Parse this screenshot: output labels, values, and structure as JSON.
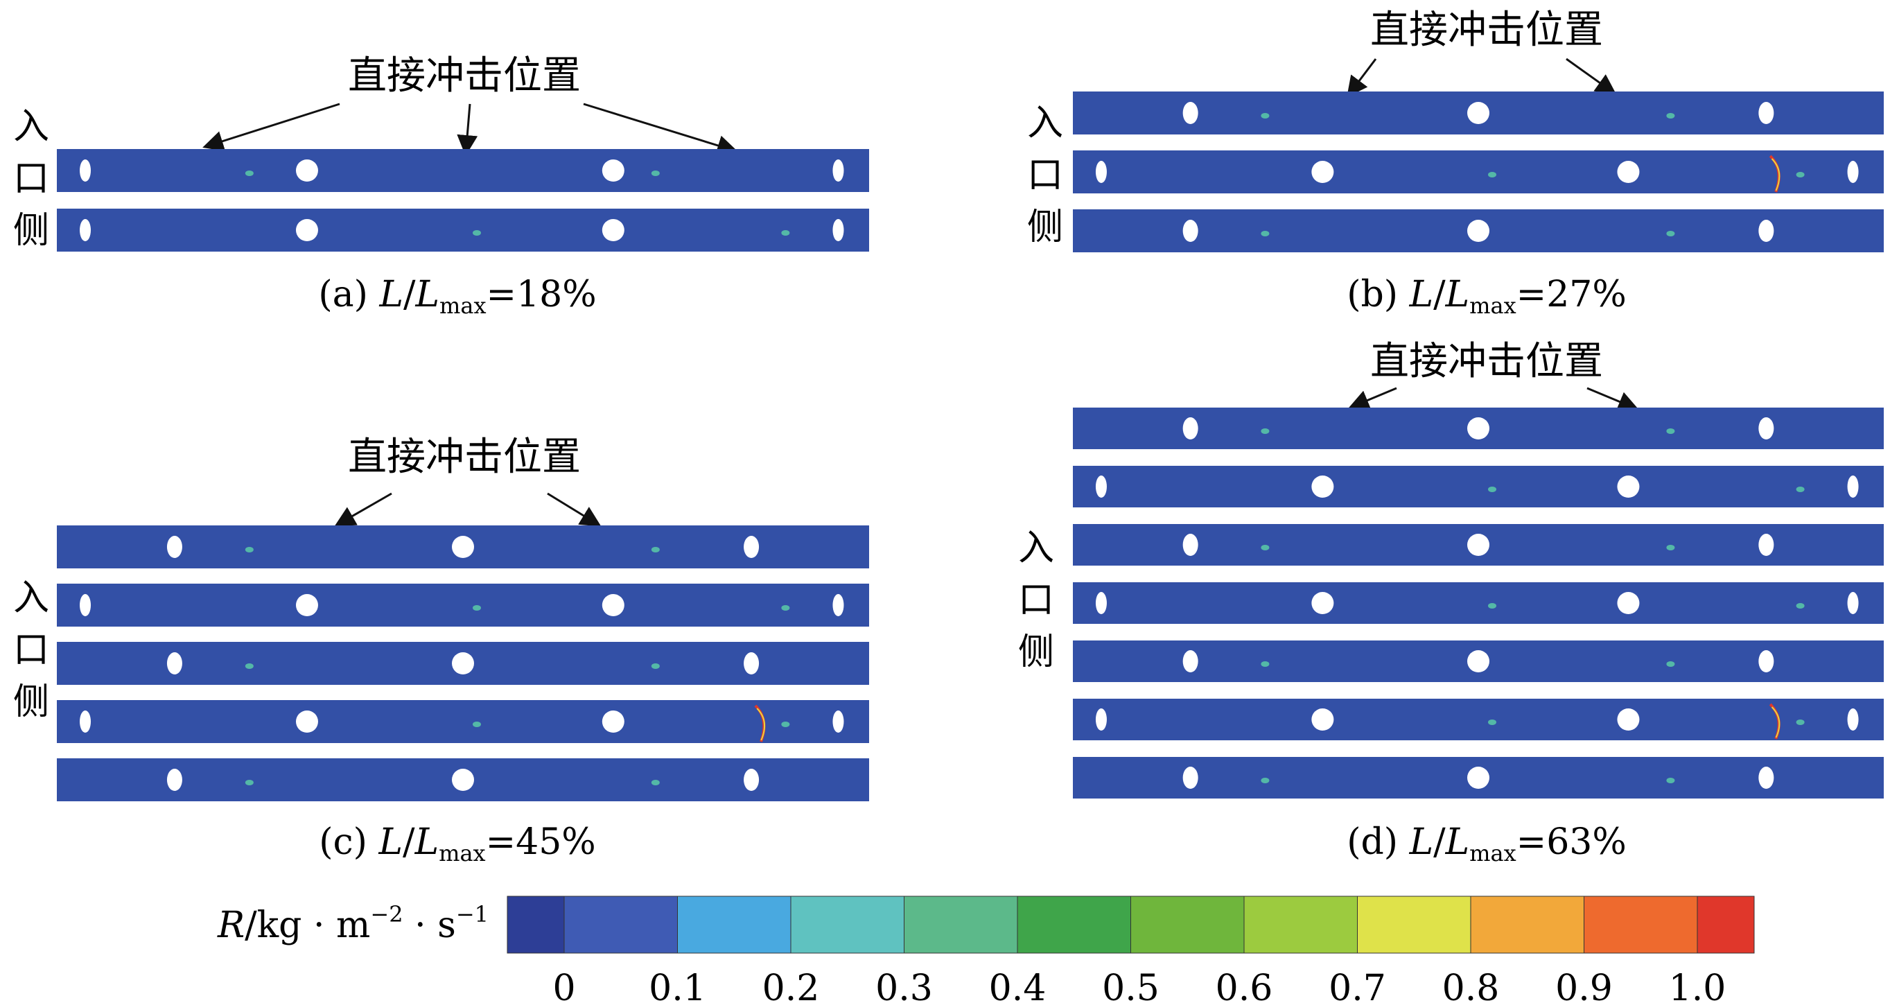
{
  "figure": {
    "panels": [
      {
        "id": "a",
        "caption_prefix": "(a) ",
        "caption_var": "L",
        "caption_slash": "/",
        "caption_var2": "L",
        "caption_sub": "max",
        "caption_suffix": "=18%",
        "annotation": "直接冲击位置",
        "side_label": [
          "入",
          "口",
          "侧"
        ],
        "strip_count": 2
      },
      {
        "id": "b",
        "caption_prefix": "(b) ",
        "caption_var": "L",
        "caption_slash": "/",
        "caption_var2": "L",
        "caption_sub": "max",
        "caption_suffix": "=27%",
        "annotation": "直接冲击位置",
        "side_label": [
          "入",
          "口",
          "侧"
        ],
        "strip_count": 3
      },
      {
        "id": "c",
        "caption_prefix": "(c) ",
        "caption_var": "L",
        "caption_slash": "/",
        "caption_var2": "L",
        "caption_sub": "max",
        "caption_suffix": "=45%",
        "annotation": "直接冲击位置",
        "side_label": [
          "入",
          "口",
          "侧"
        ],
        "strip_count": 5
      },
      {
        "id": "d",
        "caption_prefix": "(d) ",
        "caption_var": "L",
        "caption_slash": "/",
        "caption_var2": "L",
        "caption_sub": "max",
        "caption_suffix": "=63%",
        "annotation": "直接冲击位置",
        "side_label": [
          "入",
          "口",
          "侧"
        ],
        "strip_count": 7
      }
    ],
    "colorbar": {
      "label_var": "R",
      "label_unit": "/kg · m",
      "label_exp1": "−2",
      "label_mid": " · s",
      "label_exp2": "−1",
      "ticks": [
        "0",
        "0.1",
        "0.2",
        "0.3",
        "0.4",
        "0.5",
        "0.6",
        "0.7",
        "0.8",
        "0.9",
        "1.0"
      ],
      "colors": [
        "#2d3e96",
        "#3f5bb4",
        "#49a9e0",
        "#5fc2c0",
        "#5cb98a",
        "#3fa54a",
        "#6fb63c",
        "#9ccb3f",
        "#dfe24a",
        "#f2a83a",
        "#ee6a2e",
        "#e0372b"
      ]
    },
    "colors": {
      "strip_fill": "#3350a6",
      "hole_fill": "#ffffff",
      "hot_mid": "#5cd2a8",
      "hot_high": "#e8d640",
      "hot_max": "#e0372b"
    }
  }
}
